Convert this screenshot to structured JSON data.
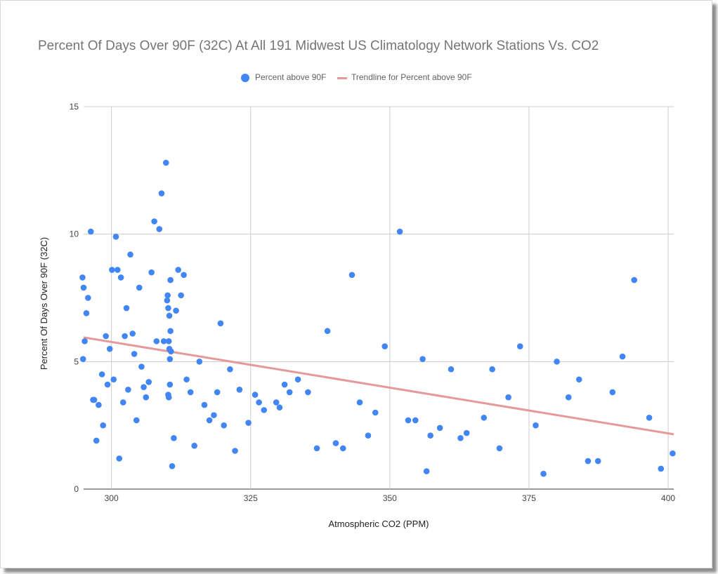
{
  "chart_data": {
    "type": "scatter",
    "title": "Percent Of Days Over 90F (32C) At All 191 Midwest US Climatology Network Stations Vs. CO2",
    "xlabel": "Atmospheric CO2 (PPM)",
    "ylabel": "Percent Of Days Over 90F (32C)",
    "xlim": [
      295,
      401
    ],
    "ylim": [
      0,
      15
    ],
    "xticks": [
      300,
      325,
      350,
      375,
      400
    ],
    "yticks": [
      0,
      5,
      10,
      15
    ],
    "grid": true,
    "legend_position": "top",
    "series": [
      {
        "name": "Percent above 90F",
        "color": "#4285f4",
        "points": [
          [
            294.8,
            8.3
          ],
          [
            295.0,
            7.9
          ],
          [
            294.9,
            5.1
          ],
          [
            295.2,
            5.8
          ],
          [
            295.5,
            6.9
          ],
          [
            295.8,
            7.5
          ],
          [
            296.3,
            10.1
          ],
          [
            296.7,
            3.5
          ],
          [
            296.9,
            3.5
          ],
          [
            297.3,
            1.9
          ],
          [
            297.7,
            3.3
          ],
          [
            298.3,
            4.5
          ],
          [
            298.5,
            2.5
          ],
          [
            299.0,
            6.0
          ],
          [
            299.3,
            4.1
          ],
          [
            299.7,
            5.5
          ],
          [
            300.1,
            8.6
          ],
          [
            300.4,
            4.3
          ],
          [
            300.8,
            9.9
          ],
          [
            301.1,
            8.6
          ],
          [
            301.4,
            1.2
          ],
          [
            301.7,
            8.3
          ],
          [
            302.1,
            3.4
          ],
          [
            302.4,
            6.0
          ],
          [
            302.7,
            7.1
          ],
          [
            303.0,
            3.9
          ],
          [
            303.4,
            9.2
          ],
          [
            303.8,
            6.1
          ],
          [
            304.1,
            5.3
          ],
          [
            304.5,
            2.7
          ],
          [
            305.0,
            7.9
          ],
          [
            305.4,
            4.8
          ],
          [
            305.8,
            4.0
          ],
          [
            306.2,
            3.6
          ],
          [
            306.7,
            4.2
          ],
          [
            307.2,
            8.5
          ],
          [
            307.7,
            10.5
          ],
          [
            308.1,
            5.8
          ],
          [
            308.6,
            10.2
          ],
          [
            309.0,
            11.6
          ],
          [
            309.4,
            5.8
          ],
          [
            309.8,
            12.8
          ],
          [
            310.0,
            7.4
          ],
          [
            310.1,
            7.6
          ],
          [
            310.2,
            7.1
          ],
          [
            310.2,
            3.7
          ],
          [
            310.3,
            5.8
          ],
          [
            310.3,
            3.6
          ],
          [
            310.4,
            6.8
          ],
          [
            310.4,
            5.5
          ],
          [
            310.5,
            4.1
          ],
          [
            310.5,
            5.1
          ],
          [
            310.6,
            8.2
          ],
          [
            310.6,
            6.2
          ],
          [
            310.7,
            5.4
          ],
          [
            310.9,
            0.9
          ],
          [
            311.2,
            2.0
          ],
          [
            311.6,
            7.0
          ],
          [
            312.0,
            8.6
          ],
          [
            312.5,
            7.6
          ],
          [
            313.0,
            8.4
          ],
          [
            313.5,
            4.3
          ],
          [
            314.2,
            3.8
          ],
          [
            314.9,
            1.7
          ],
          [
            315.8,
            5.0
          ],
          [
            316.7,
            3.3
          ],
          [
            317.6,
            2.7
          ],
          [
            318.4,
            2.9
          ],
          [
            319.0,
            3.8
          ],
          [
            319.6,
            6.5
          ],
          [
            320.2,
            2.5
          ],
          [
            321.3,
            4.7
          ],
          [
            322.2,
            1.5
          ],
          [
            323.0,
            3.9
          ],
          [
            324.6,
            2.6
          ],
          [
            325.8,
            3.7
          ],
          [
            326.5,
            3.4
          ],
          [
            327.4,
            3.1
          ],
          [
            329.6,
            3.4
          ],
          [
            330.2,
            3.2
          ],
          [
            331.1,
            4.1
          ],
          [
            332.0,
            3.8
          ],
          [
            333.5,
            4.3
          ],
          [
            335.3,
            3.8
          ],
          [
            336.9,
            1.6
          ],
          [
            338.8,
            6.2
          ],
          [
            340.3,
            1.8
          ],
          [
            341.6,
            1.6
          ],
          [
            343.2,
            8.4
          ],
          [
            344.6,
            3.4
          ],
          [
            346.1,
            2.1
          ],
          [
            347.4,
            3.0
          ],
          [
            349.1,
            5.6
          ],
          [
            351.8,
            10.1
          ],
          [
            353.3,
            2.7
          ],
          [
            354.6,
            2.7
          ],
          [
            355.9,
            5.1
          ],
          [
            356.6,
            0.7
          ],
          [
            357.3,
            2.1
          ],
          [
            359.0,
            2.4
          ],
          [
            361.0,
            4.7
          ],
          [
            362.7,
            2.0
          ],
          [
            363.8,
            2.2
          ],
          [
            366.9,
            2.8
          ],
          [
            368.4,
            4.7
          ],
          [
            369.7,
            1.6
          ],
          [
            371.3,
            3.6
          ],
          [
            373.4,
            5.6
          ],
          [
            376.2,
            2.5
          ],
          [
            377.6,
            0.6
          ],
          [
            380.0,
            5.0
          ],
          [
            382.1,
            3.6
          ],
          [
            384.0,
            4.3
          ],
          [
            385.6,
            1.1
          ],
          [
            387.4,
            1.1
          ],
          [
            390.0,
            3.8
          ],
          [
            391.8,
            5.2
          ],
          [
            393.9,
            8.2
          ],
          [
            396.6,
            2.8
          ],
          [
            398.7,
            0.8
          ],
          [
            400.8,
            1.4
          ]
        ]
      },
      {
        "name": "Trendline for Percent above 90F",
        "color": "#e6999a",
        "type": "line",
        "points": [
          [
            295,
            5.95
          ],
          [
            401,
            2.15
          ]
        ]
      }
    ]
  }
}
